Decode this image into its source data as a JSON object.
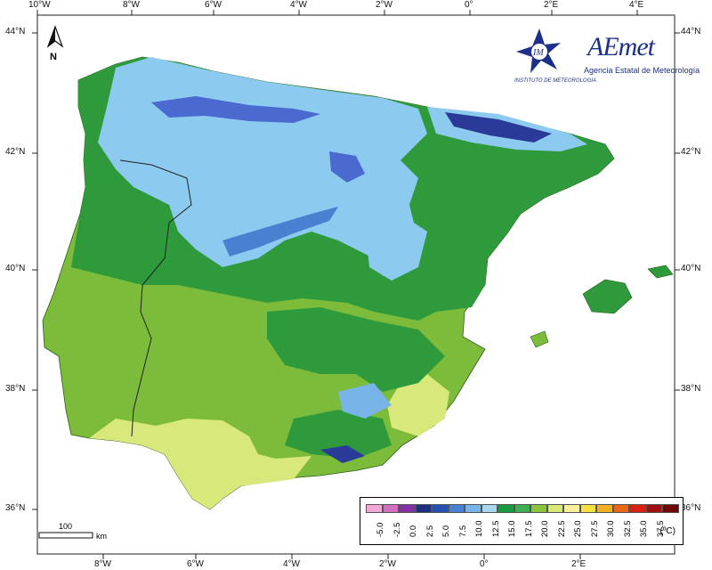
{
  "map": {
    "north_label": "N",
    "scale_value": "100",
    "scale_unit": "km",
    "lon_labels": [
      "10°W",
      "8°W",
      "6°W",
      "4°W",
      "2°W",
      "0°",
      "2°E",
      "4°E"
    ],
    "lat_labels": [
      "44°N",
      "42°N",
      "40°N",
      "38°N",
      "36°N"
    ]
  },
  "logos": {
    "im_text": "INSTITUTO DE METEOROLOGIA",
    "aemet_title": "AEmet",
    "aemet_subtitle": "Agencia Estatal de Meteorología"
  },
  "legend": {
    "unit": "(ºC)",
    "labels": [
      "-5.0",
      "-2.5",
      "0.0",
      "2.5",
      "5.0",
      "7.5",
      "10.0",
      "12.5",
      "15.0",
      "17.5",
      "20.0",
      "22.5",
      "25.0",
      "27.5",
      "30.0",
      "32.5",
      "35.0",
      "37.5"
    ],
    "colors": [
      "#f0a8d8",
      "#d070c0",
      "#8030a0",
      "#203080",
      "#2850b0",
      "#4a80d0",
      "#78b4e8",
      "#a8d8f0",
      "#1a9a40",
      "#3fb050",
      "#8cc43c",
      "#d8e878",
      "#f8f09a",
      "#f8e040",
      "#f0b020",
      "#e86818",
      "#d82010",
      "#a01010",
      "#700808"
    ]
  },
  "colors": {
    "sea": "#ffffff",
    "ocean_outline": "#333333",
    "cold_mountain": "#4a6ad0",
    "plateau": "#8ccbef",
    "mid": "#2e9a3c",
    "warm": "#7cbc3a",
    "hot": "#d9e87a"
  }
}
